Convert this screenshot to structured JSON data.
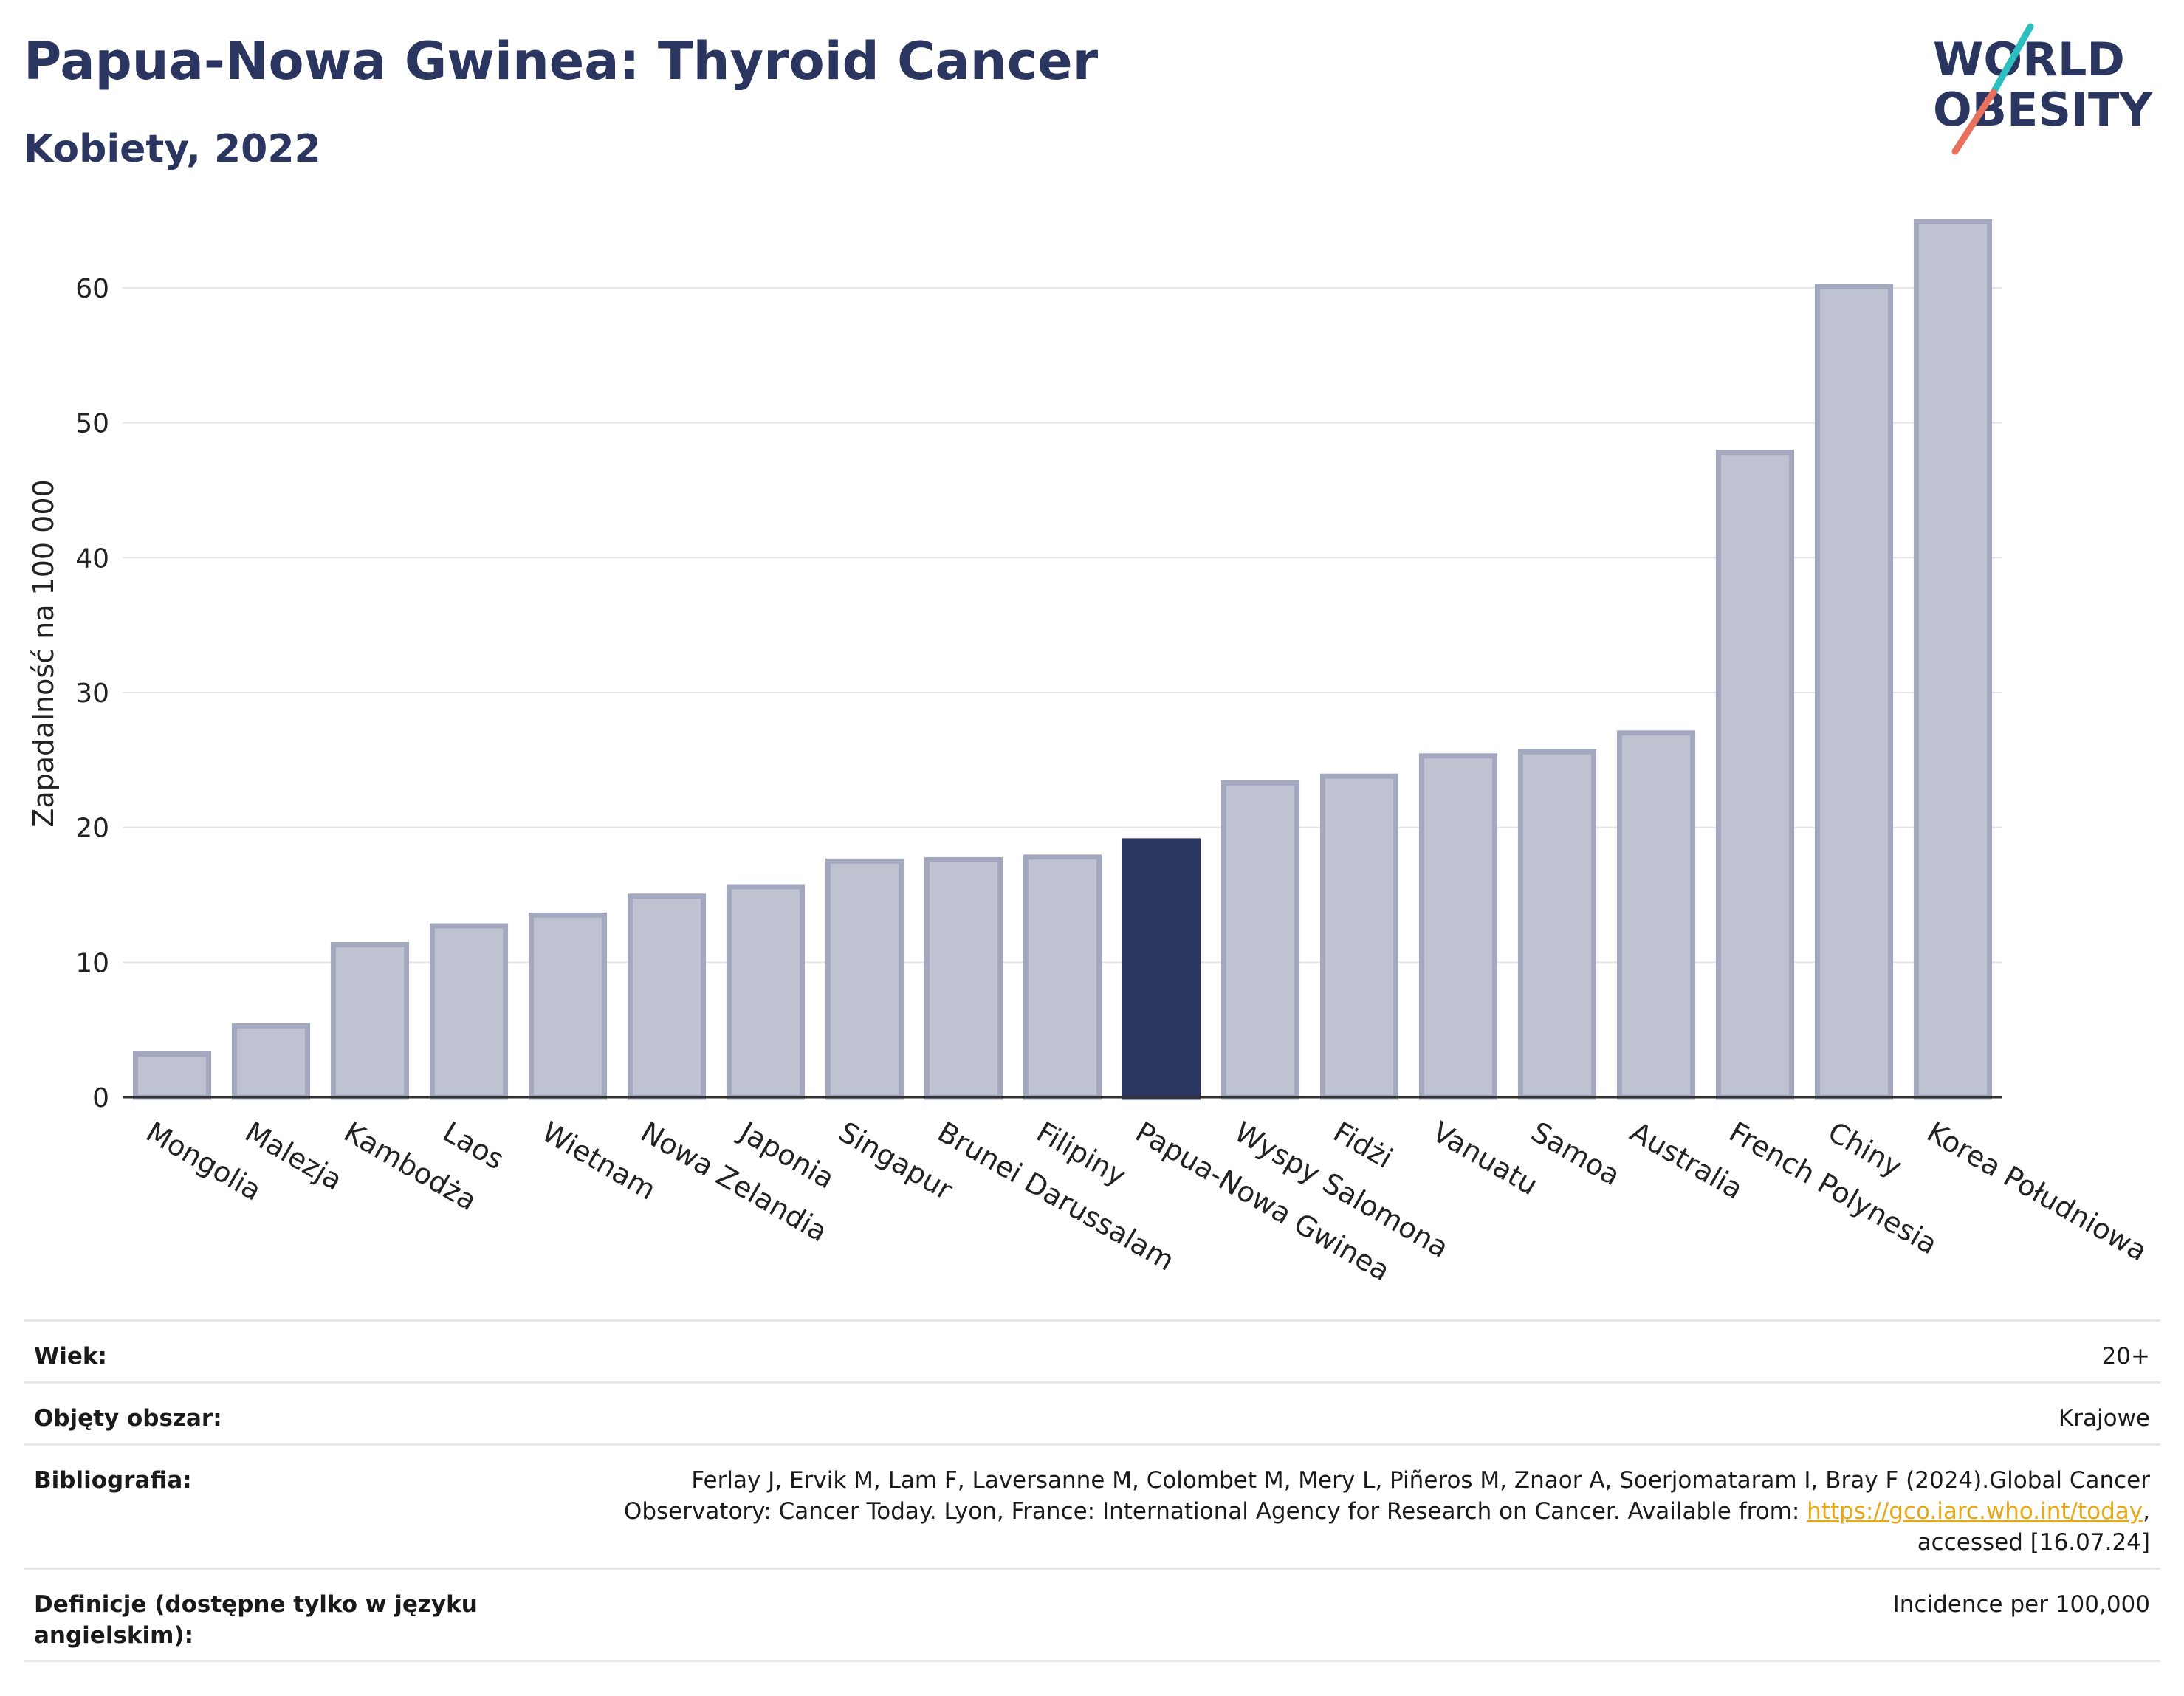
{
  "header": {
    "title": "Papua-Nowa Gwinea: Thyroid Cancer",
    "subtitle": "Kobiety, 2022"
  },
  "logo": {
    "line1": "WORLD",
    "line2": "OBESITY",
    "colors": {
      "text": "#2a3560",
      "slash_top": "#2bbfbf",
      "slash_bottom": "#e8715e"
    }
  },
  "chart_data": {
    "type": "bar",
    "title": "Papua-Nowa Gwinea: Thyroid Cancer",
    "subtitle": "Kobiety, 2022",
    "xlabel": "",
    "ylabel": "Zapadalność na 100 000",
    "ylim": [
      0,
      67
    ],
    "yticks": [
      0,
      10,
      20,
      30,
      40,
      50,
      60
    ],
    "grid": true,
    "highlight": "Papua-Nowa Gwinea",
    "colors": {
      "bar": "#bfc3d1",
      "bar_edge": "#a3a8bf",
      "highlight": "#2a3560",
      "grid": "#e6e6ea",
      "axis": "#333333"
    },
    "categories": [
      "Mongolia",
      "Malezja",
      "Kambodża",
      "Laos",
      "Wietnam",
      "Nowa Zelandia",
      "Japonia",
      "Singapur",
      "Brunei Darussalam",
      "Filipiny",
      "Papua-Nowa Gwinea",
      "Wyspy Salomona",
      "Fidżi",
      "Vanuatu",
      "Samoa",
      "Australia",
      "French Polynesia",
      "Chiny",
      "Korea Południowa"
    ],
    "values": [
      3.2,
      5.3,
      11.3,
      12.7,
      13.5,
      14.9,
      15.6,
      17.5,
      17.6,
      17.8,
      19.0,
      23.3,
      23.8,
      25.3,
      25.6,
      27.0,
      47.8,
      60.1,
      64.9
    ]
  },
  "info": {
    "rows": [
      {
        "label": "Wiek:",
        "value": "20+"
      },
      {
        "label": "Objęty obszar:",
        "value": "Krajowe"
      },
      {
        "label": "Bibliografia:",
        "value_line1": "Ferlay J, Ervik M, Lam F, Laversanne M, Colombet M, Mery L, Piñeros M, Znaor A, Soerjomataram I, Bray F (2024).Global Cancer",
        "value_line2_pre": "Observatory: Cancer Today. Lyon, France: International Agency for Research on Cancer. Available from: ",
        "link": "https://gco.iarc.who.int/today",
        "value_line2_post": ",",
        "value_line3": "accessed [16.07.24]"
      },
      {
        "label": "Definicje (dostępne tylko w języku angielskim):",
        "value": "Incidence per 100,000"
      }
    ]
  }
}
